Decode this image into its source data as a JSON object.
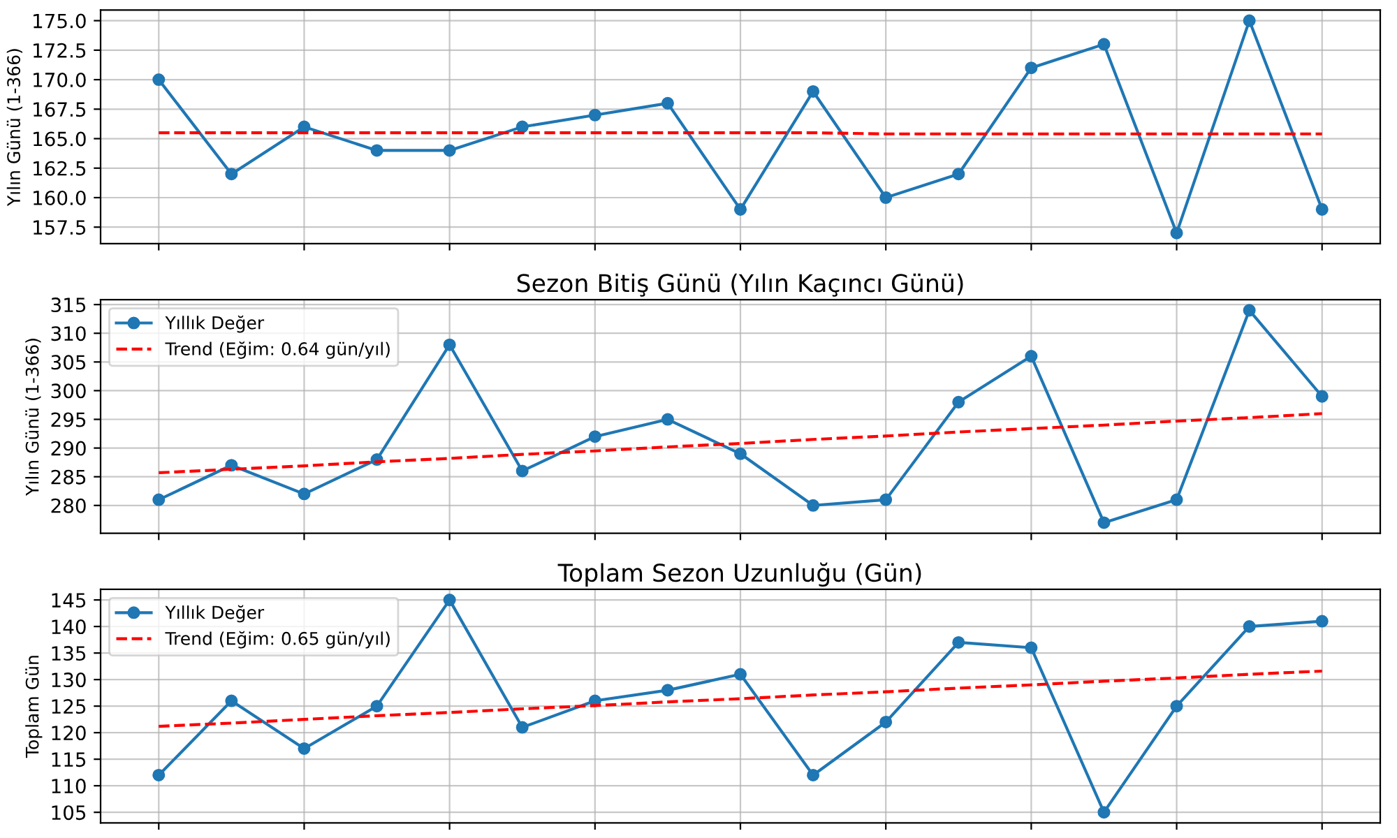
{
  "chart_data": [
    {
      "type": "line",
      "ylabel": "Yılın Günü (1-366)",
      "categories": [
        null,
        null,
        null,
        null,
        null,
        null,
        null,
        null,
        null,
        null,
        null,
        null,
        null,
        null,
        null,
        null,
        null
      ],
      "series": [
        {
          "type": "line",
          "color": "#1f77b4",
          "marker": "circle",
          "line_style": "solid",
          "values": [
            170,
            162,
            166,
            164,
            164,
            166,
            167,
            168,
            159,
            169,
            160,
            162,
            171,
            173,
            157,
            175,
            159
          ]
        },
        {
          "type": "line",
          "color": "#ff0000",
          "marker": "none",
          "line_style": "dashed",
          "values": [
            165.5,
            165.5,
            165.5,
            165.5,
            165.5,
            165.5,
            165.5,
            165.5,
            165.5,
            165.5,
            165.4,
            165.4,
            165.4,
            165.4,
            165.4,
            165.4,
            165.4
          ]
        }
      ],
      "ylim": [
        156.1,
        175.9
      ],
      "yticks": [
        157.5,
        {
          "value": 160,
          "label": "160.0"
        },
        162.5,
        {
          "value": 165,
          "label": "165.0"
        },
        167.5,
        {
          "value": 170,
          "label": "170.0"
        },
        172.5,
        {
          "value": 175,
          "label": "175.0"
        }
      ],
      "grid": true,
      "tick_labels": "y"
    },
    {
      "type": "line",
      "title": "Sezon Bitiş Günü (Yılın Kaçıncı Günü)",
      "ylabel": "Yılın Günü (1-366)",
      "categories": [
        null,
        null,
        null,
        null,
        null,
        null,
        null,
        null,
        null,
        null,
        null,
        null,
        null,
        null,
        null,
        null,
        null
      ],
      "series": [
        {
          "type": "line",
          "name": "Yıllık Değer",
          "color": "#1f77b4",
          "marker": "circle",
          "line_style": "solid",
          "values": [
            281,
            287,
            282,
            288,
            308,
            286,
            292,
            295,
            289,
            280,
            281,
            298,
            306,
            277,
            281,
            314,
            299
          ]
        },
        {
          "type": "line",
          "name": "Trend (Eğim: 0.64 gün/yıl)",
          "color": "#ff0000",
          "marker": "none",
          "line_style": "dashed",
          "values": [
            285.7,
            286.3,
            286.9,
            287.6,
            288.2,
            288.9,
            289.5,
            290.2,
            290.8,
            291.5,
            292.1,
            292.8,
            293.4,
            294.0,
            294.7,
            295.3,
            296.0
          ]
        }
      ],
      "ylim": [
        275.15,
        315.85
      ],
      "yticks": [
        280,
        285,
        290,
        295,
        300,
        305,
        310,
        315
      ],
      "grid": true,
      "legend": "top left",
      "tick_labels": "y"
    },
    {
      "type": "line",
      "title": "Toplam Sezon Uzunluğu (Gün)",
      "ylabel": "Toplam Gün",
      "categories": [
        null,
        null,
        null,
        null,
        null,
        null,
        null,
        null,
        null,
        null,
        null,
        null,
        null,
        null,
        null,
        null,
        null
      ],
      "series": [
        {
          "type": "line",
          "name": "Yıllık Değer",
          "color": "#1f77b4",
          "marker": "circle",
          "line_style": "solid",
          "values": [
            112,
            126,
            117,
            125,
            145,
            121,
            126,
            128,
            131,
            112,
            122,
            137,
            136,
            105,
            125,
            140,
            141
          ]
        },
        {
          "type": "line",
          "name": "Trend (Eğim: 0.65 gün/yıl)",
          "color": "#ff0000",
          "marker": "none",
          "line_style": "dashed",
          "values": [
            121.2,
            121.8,
            122.5,
            123.2,
            123.8,
            124.5,
            125.1,
            125.8,
            126.4,
            127.1,
            127.7,
            128.4,
            129.0,
            129.7,
            130.3,
            131.0,
            131.6
          ]
        }
      ],
      "ylim": [
        103,
        147
      ],
      "yticks": [
        105,
        110,
        115,
        120,
        125,
        130,
        135,
        140,
        145
      ],
      "grid": true,
      "legend": "top left",
      "tick_labels": "y"
    }
  ]
}
